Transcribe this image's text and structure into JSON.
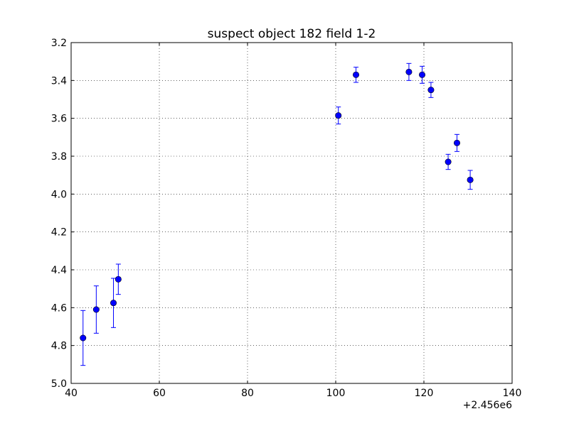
{
  "chart_data": {
    "type": "scatter",
    "title": "suspect object 182 field 1-2",
    "xlabel": "",
    "ylabel": "",
    "x_offset_label": "+2.456e6",
    "xlim": [
      40,
      140
    ],
    "ylim": [
      5.0,
      3.2
    ],
    "y_inverted": true,
    "grid": true,
    "x_ticks": [
      "40",
      "60",
      "80",
      "100",
      "120",
      "140"
    ],
    "y_ticks": [
      "3.2",
      "3.4",
      "3.6",
      "3.8",
      "4.0",
      "4.2",
      "4.4",
      "4.6",
      "4.8",
      "5.0"
    ],
    "marker_color": "#0000ff",
    "series": [
      {
        "points": [
          {
            "x": 42.7,
            "y": 4.76,
            "err": 0.145
          },
          {
            "x": 45.7,
            "y": 4.61,
            "err": 0.125
          },
          {
            "x": 49.6,
            "y": 4.575,
            "err": 0.13
          },
          {
            "x": 50.7,
            "y": 4.45,
            "err": 0.08
          },
          {
            "x": 100.6,
            "y": 3.585,
            "err": 0.045
          },
          {
            "x": 104.6,
            "y": 3.37,
            "err": 0.04
          },
          {
            "x": 116.6,
            "y": 3.355,
            "err": 0.045
          },
          {
            "x": 119.6,
            "y": 3.37,
            "err": 0.045
          },
          {
            "x": 121.6,
            "y": 3.45,
            "err": 0.04
          },
          {
            "x": 125.5,
            "y": 3.83,
            "err": 0.04
          },
          {
            "x": 127.5,
            "y": 3.73,
            "err": 0.045
          },
          {
            "x": 130.5,
            "y": 3.925,
            "err": 0.05
          }
        ]
      }
    ]
  }
}
